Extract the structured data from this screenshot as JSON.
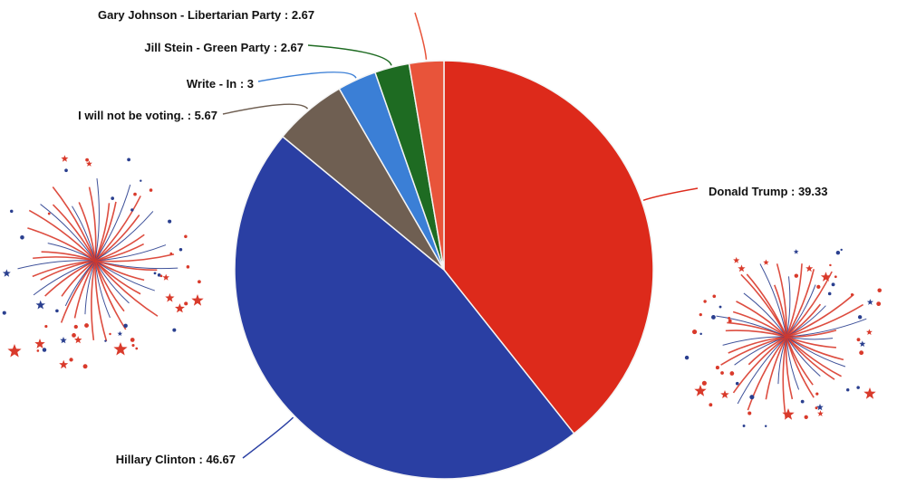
{
  "chart_data": {
    "type": "pie",
    "title": "",
    "slices": [
      {
        "label": "Donald Trump : 39.33",
        "name": "Donald Trump",
        "value": 39.33,
        "color": "#dd2a1b"
      },
      {
        "label": "Hillary Clinton : 46.67",
        "name": "Hillary Clinton",
        "value": 46.67,
        "color": "#2a3fa3"
      },
      {
        "label": "I will not be voting. : 5.67",
        "name": "I will not be voting.",
        "value": 5.67,
        "color": "#6f5f52"
      },
      {
        "label": "Write - In : 3",
        "name": "Write - In",
        "value": 3,
        "color": "#3b7fd6"
      },
      {
        "label": "Jill Stein - Green Party : 2.67",
        "name": "Jill Stein - Green Party",
        "value": 2.67,
        "color": "#1e6b22"
      },
      {
        "label": "Gary Johnson - Libertarian Party : 2.67",
        "name": "Gary Johnson - Libertarian Party",
        "value": 2.67,
        "color": "#e8543a"
      }
    ],
    "start_angle": "top",
    "direction": "clockwise",
    "legend": "none",
    "data_labels": "outside with leader lines"
  },
  "decorations": [
    {
      "name": "fireworks-left",
      "colors": [
        "#d93a2b",
        "#2a3f8f"
      ]
    },
    {
      "name": "fireworks-right",
      "colors": [
        "#d93a2b",
        "#2a3f8f"
      ]
    }
  ]
}
